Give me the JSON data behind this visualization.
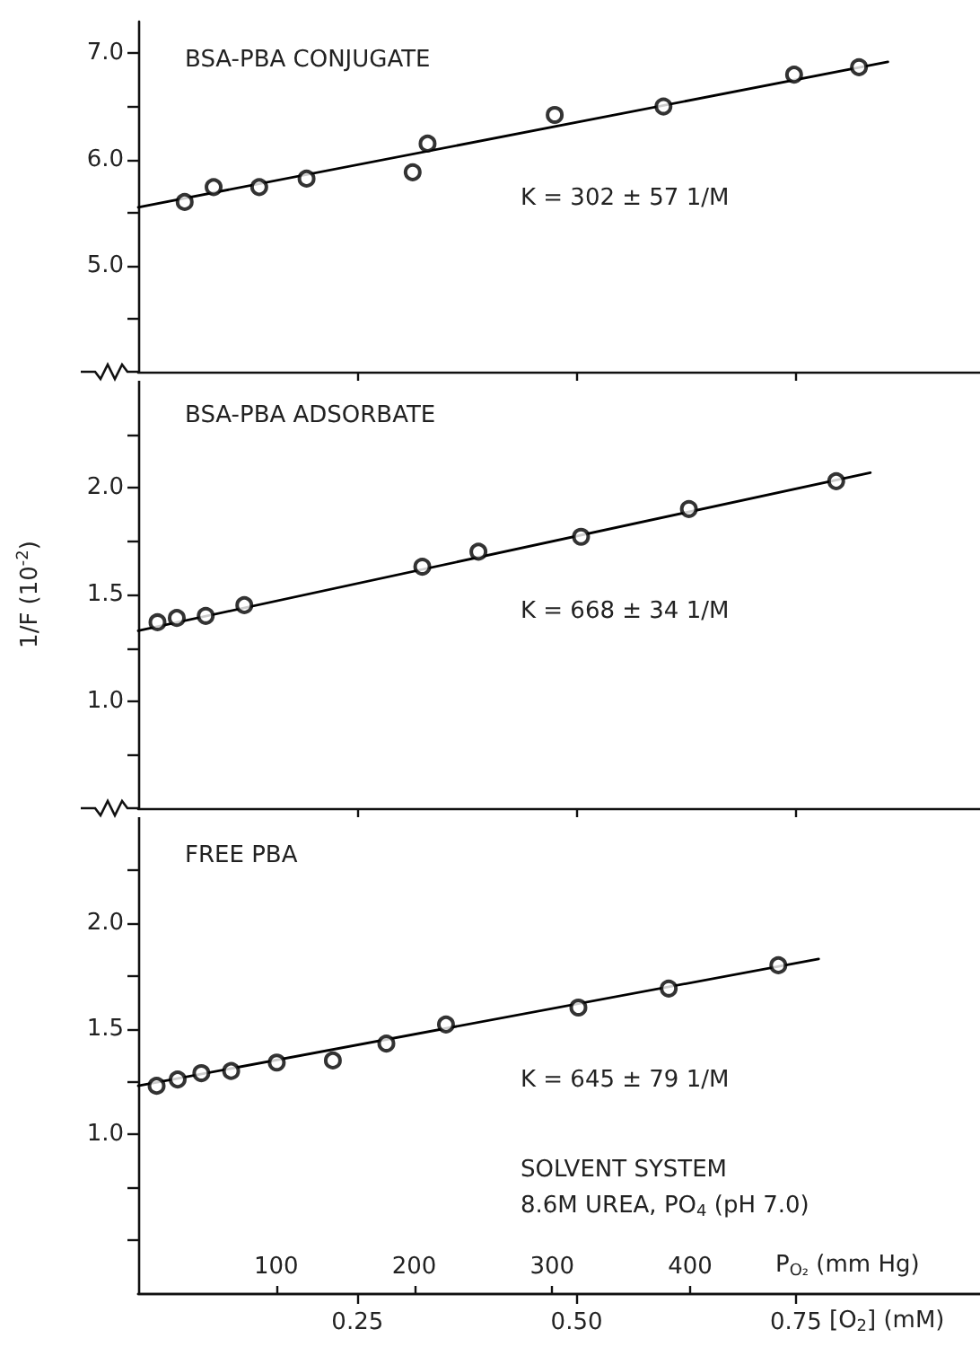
{
  "chart_data": [
    {
      "type": "scatter",
      "title": "BSA-PBA CONJUGATE",
      "annotations": [
        "K = 302 ± 57 1/M"
      ],
      "xlim": [
        0,
        0.96
      ],
      "xticks": [
        {
          "value": 0.25,
          "label": null
        },
        {
          "value": 0.5,
          "label": null
        },
        {
          "value": 0.75,
          "label": null
        }
      ],
      "ylim": [
        4.0,
        7.3
      ],
      "yticks": [
        {
          "value": 4.5,
          "label": null
        },
        {
          "value": 5,
          "label": "5.0"
        },
        {
          "value": 5.5,
          "label": null
        },
        {
          "value": 6,
          "label": "6.0"
        },
        {
          "value": 6.5,
          "label": null
        },
        {
          "value": 7,
          "label": "7.0"
        }
      ],
      "tick_labels": "y",
      "series": [
        {
          "color": "#000000",
          "marker": "circle",
          "x": [
            0.053,
            0.086,
            0.138,
            0.192,
            0.313,
            0.33,
            0.475,
            0.599,
            0.748,
            0.822
          ],
          "values": [
            5.6,
            5.74,
            5.74,
            5.82,
            5.88,
            6.15,
            6.42,
            6.5,
            6.8,
            6.87
          ]
        },
        {
          "type": "line",
          "color": "#000000",
          "marker": "none",
          "x": [
            0,
            0.855
          ],
          "values": [
            5.55,
            6.92
          ]
        }
      ]
    },
    {
      "type": "scatter",
      "title": "BSA-PBA ADSORBATE",
      "ylabel": "1/F (10$^{-2}$)",
      "annotations": [
        "K = 668 ± 34 1/M"
      ],
      "xlim": [
        0,
        0.96
      ],
      "xticks": [
        {
          "value": 0.25,
          "label": null
        },
        {
          "value": 0.5,
          "label": null
        },
        {
          "value": 0.75,
          "label": null
        }
      ],
      "ylim": [
        0.5,
        2.5
      ],
      "yticks": [
        {
          "value": 0.75,
          "label": null
        },
        {
          "value": 1,
          "label": "1.0"
        },
        {
          "value": 1.25,
          "label": null
        },
        {
          "value": 1.5,
          "label": "1.5"
        },
        {
          "value": 1.75,
          "label": null
        },
        {
          "value": 2,
          "label": "2.0"
        },
        {
          "value": 2.25,
          "label": null
        }
      ],
      "tick_labels": "y",
      "series": [
        {
          "color": "#000000",
          "marker": "circle",
          "x": [
            0.022,
            0.044,
            0.077,
            0.121,
            0.324,
            0.388,
            0.505,
            0.628,
            0.796
          ],
          "values": [
            1.37,
            1.39,
            1.4,
            1.45,
            1.63,
            1.7,
            1.77,
            1.9,
            2.03
          ]
        },
        {
          "type": "line",
          "color": "#000000",
          "marker": "none",
          "x": [
            0,
            0.835
          ],
          "values": [
            1.33,
            2.07
          ]
        }
      ]
    },
    {
      "type": "scatter",
      "title": "FREE PBA",
      "xlabel": "[O$_{2}$] (mM)",
      "x2label": "P$_{O₂}$ (mm Hg)",
      "annotations": [
        "K = 645 ± 79 1/M",
        "SOLVENT SYSTEM",
        "8.6M UREA, PO$_{4}$ (pH 7.0)"
      ],
      "xlim": [
        0,
        0.96
      ],
      "xticks": [
        0.25,
        {
          "value": 0.5,
          "label": "0.50"
        },
        0.75
      ],
      "x2lim": [
        0,
        610
      ],
      "x2ticks": [
        100,
        200,
        300,
        400
      ],
      "ylim": [
        0.25,
        2.5
      ],
      "yticks": [
        {
          "value": 0.5,
          "label": null
        },
        {
          "value": 0.75,
          "label": null
        },
        {
          "value": 1,
          "label": "1.0"
        },
        {
          "value": 1.25,
          "label": null
        },
        {
          "value": 1.5,
          "label": "1.5"
        },
        {
          "value": 1.75,
          "label": null
        },
        {
          "value": 2,
          "label": "2.0"
        },
        {
          "value": 2.25,
          "label": null
        }
      ],
      "series": [
        {
          "color": "#000000",
          "marker": "circle",
          "x": [
            0.021,
            0.045,
            0.072,
            0.106,
            0.158,
            0.222,
            0.283,
            0.351,
            0.502,
            0.605,
            0.73
          ],
          "values": [
            1.23,
            1.26,
            1.29,
            1.3,
            1.34,
            1.35,
            1.43,
            1.52,
            1.6,
            1.69,
            1.8
          ]
        },
        {
          "type": "line",
          "color": "#000000",
          "marker": "none",
          "x": [
            0,
            0.776
          ],
          "values": [
            1.23,
            1.83
          ]
        }
      ]
    }
  ]
}
